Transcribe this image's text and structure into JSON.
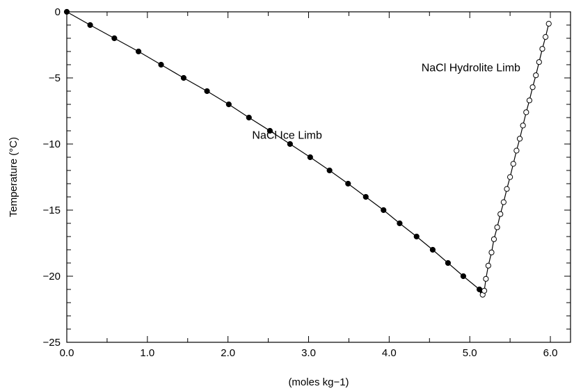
{
  "chart_data": {
    "type": "scatter",
    "title": "",
    "xlabel": "(moles kg−1)",
    "ylabel": "Temperature (°C)",
    "xlim": [
      0.0,
      6.25
    ],
    "ylim": [
      -25,
      0
    ],
    "x_ticks": [
      {
        "value": 0.0,
        "label": "0.0"
      },
      {
        "value": 1.0,
        "label": "1.0"
      },
      {
        "value": 2.0,
        "label": "2.0"
      },
      {
        "value": 3.0,
        "label": "3.0"
      },
      {
        "value": 4.0,
        "label": "4.0"
      },
      {
        "value": 5.0,
        "label": "5.0"
      },
      {
        "value": 6.0,
        "label": "6.0"
      }
    ],
    "y_ticks": [
      {
        "value": 0,
        "label": "0"
      },
      {
        "value": -5,
        "label": "−5"
      },
      {
        "value": -10,
        "label": "−10"
      },
      {
        "value": -15,
        "label": "−15"
      },
      {
        "value": -20,
        "label": "−20"
      },
      {
        "value": -25,
        "label": "−25"
      }
    ],
    "x_minor_step": 0.5,
    "y_minor_step": 1,
    "grid": false,
    "series": [
      {
        "name": "NaCl Ice Limb",
        "marker": "filled-circle",
        "color": "#000000",
        "connected": true,
        "points": [
          [
            0.0,
            0
          ],
          [
            0.29,
            -1
          ],
          [
            0.59,
            -2
          ],
          [
            0.89,
            -3
          ],
          [
            1.17,
            -4
          ],
          [
            1.45,
            -5
          ],
          [
            1.74,
            -6
          ],
          [
            2.01,
            -7
          ],
          [
            2.26,
            -8
          ],
          [
            2.52,
            -9
          ],
          [
            2.77,
            -10
          ],
          [
            3.02,
            -11
          ],
          [
            3.26,
            -12
          ],
          [
            3.49,
            -13
          ],
          [
            3.71,
            -14
          ],
          [
            3.93,
            -15
          ],
          [
            4.13,
            -16
          ],
          [
            4.34,
            -17
          ],
          [
            4.54,
            -18
          ],
          [
            4.73,
            -19
          ],
          [
            4.92,
            -20
          ],
          [
            5.12,
            -21
          ],
          [
            5.16,
            -21.2
          ]
        ]
      },
      {
        "name": "NaCl Hydrolite Limb",
        "marker": "open-circle",
        "color": "#000000",
        "connected": true,
        "points": [
          [
            5.16,
            -21.4
          ],
          [
            5.18,
            -21.1
          ],
          [
            5.2,
            -20.2
          ],
          [
            5.23,
            -19.2
          ],
          [
            5.27,
            -18.2
          ],
          [
            5.3,
            -17.2
          ],
          [
            5.34,
            -16.3
          ],
          [
            5.38,
            -15.3
          ],
          [
            5.42,
            -14.4
          ],
          [
            5.46,
            -13.4
          ],
          [
            5.5,
            -12.5
          ],
          [
            5.54,
            -11.5
          ],
          [
            5.58,
            -10.5
          ],
          [
            5.62,
            -9.6
          ],
          [
            5.66,
            -8.6
          ],
          [
            5.7,
            -7.6
          ],
          [
            5.74,
            -6.7
          ],
          [
            5.78,
            -5.7
          ],
          [
            5.82,
            -4.8
          ],
          [
            5.86,
            -3.8
          ],
          [
            5.9,
            -2.8
          ],
          [
            5.94,
            -1.9
          ],
          [
            5.98,
            -0.9
          ]
        ]
      }
    ],
    "annotations": [
      {
        "text": "NaCl Ice Limb",
        "x": 2.3,
        "y": -9.6
      },
      {
        "text": "NaCl Hydrolite Limb",
        "x": 4.4,
        "y": -4.5
      }
    ]
  }
}
